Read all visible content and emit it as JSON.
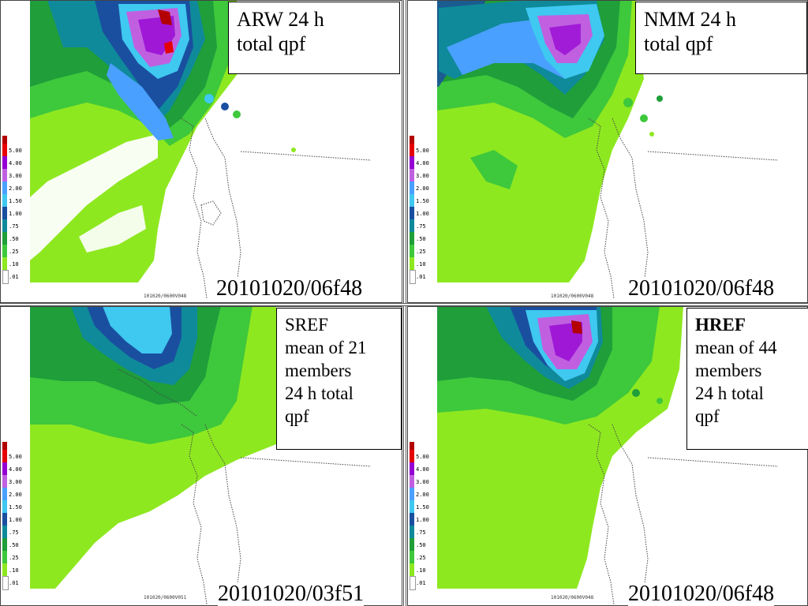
{
  "legend": {
    "labels": [
      "5.00",
      "4.00",
      "3.00",
      "2.00",
      "1.50",
      "1.00",
      ".75",
      ".50",
      ".25",
      ".10",
      ".01"
    ],
    "colors": [
      "#b30000",
      "#e60000",
      "#9400d3",
      "#c060e0",
      "#4aa0ff",
      "#3fc8f0",
      "#1a4fa0",
      "#0f8a9a",
      "#1f9e3a",
      "#3ec83c",
      "#8ee820",
      "#ffffff"
    ]
  },
  "panels": [
    {
      "id": "arw",
      "title_lines": [
        "ARW 24 h",
        "total qpf"
      ],
      "date": "20101020/06f48",
      "stamp": "101020/0600V048"
    },
    {
      "id": "nmm",
      "title_lines": [
        "NMM 24 h",
        "total qpf"
      ],
      "date": "20101020/06f48",
      "stamp": "101020/0600V048"
    },
    {
      "id": "sref",
      "title_lines": [
        "SREF",
        "mean of 21",
        "members",
        "24 h total",
        "qpf"
      ],
      "date": "20101020/03f51",
      "stamp": "101020/0600V051"
    },
    {
      "id": "href",
      "title_bold": "HREF",
      "title_lines": [
        "mean of 44",
        "members",
        "24 h total",
        "qpf"
      ],
      "date": "20101020/06f48",
      "stamp": "101020/0600V048"
    }
  ]
}
